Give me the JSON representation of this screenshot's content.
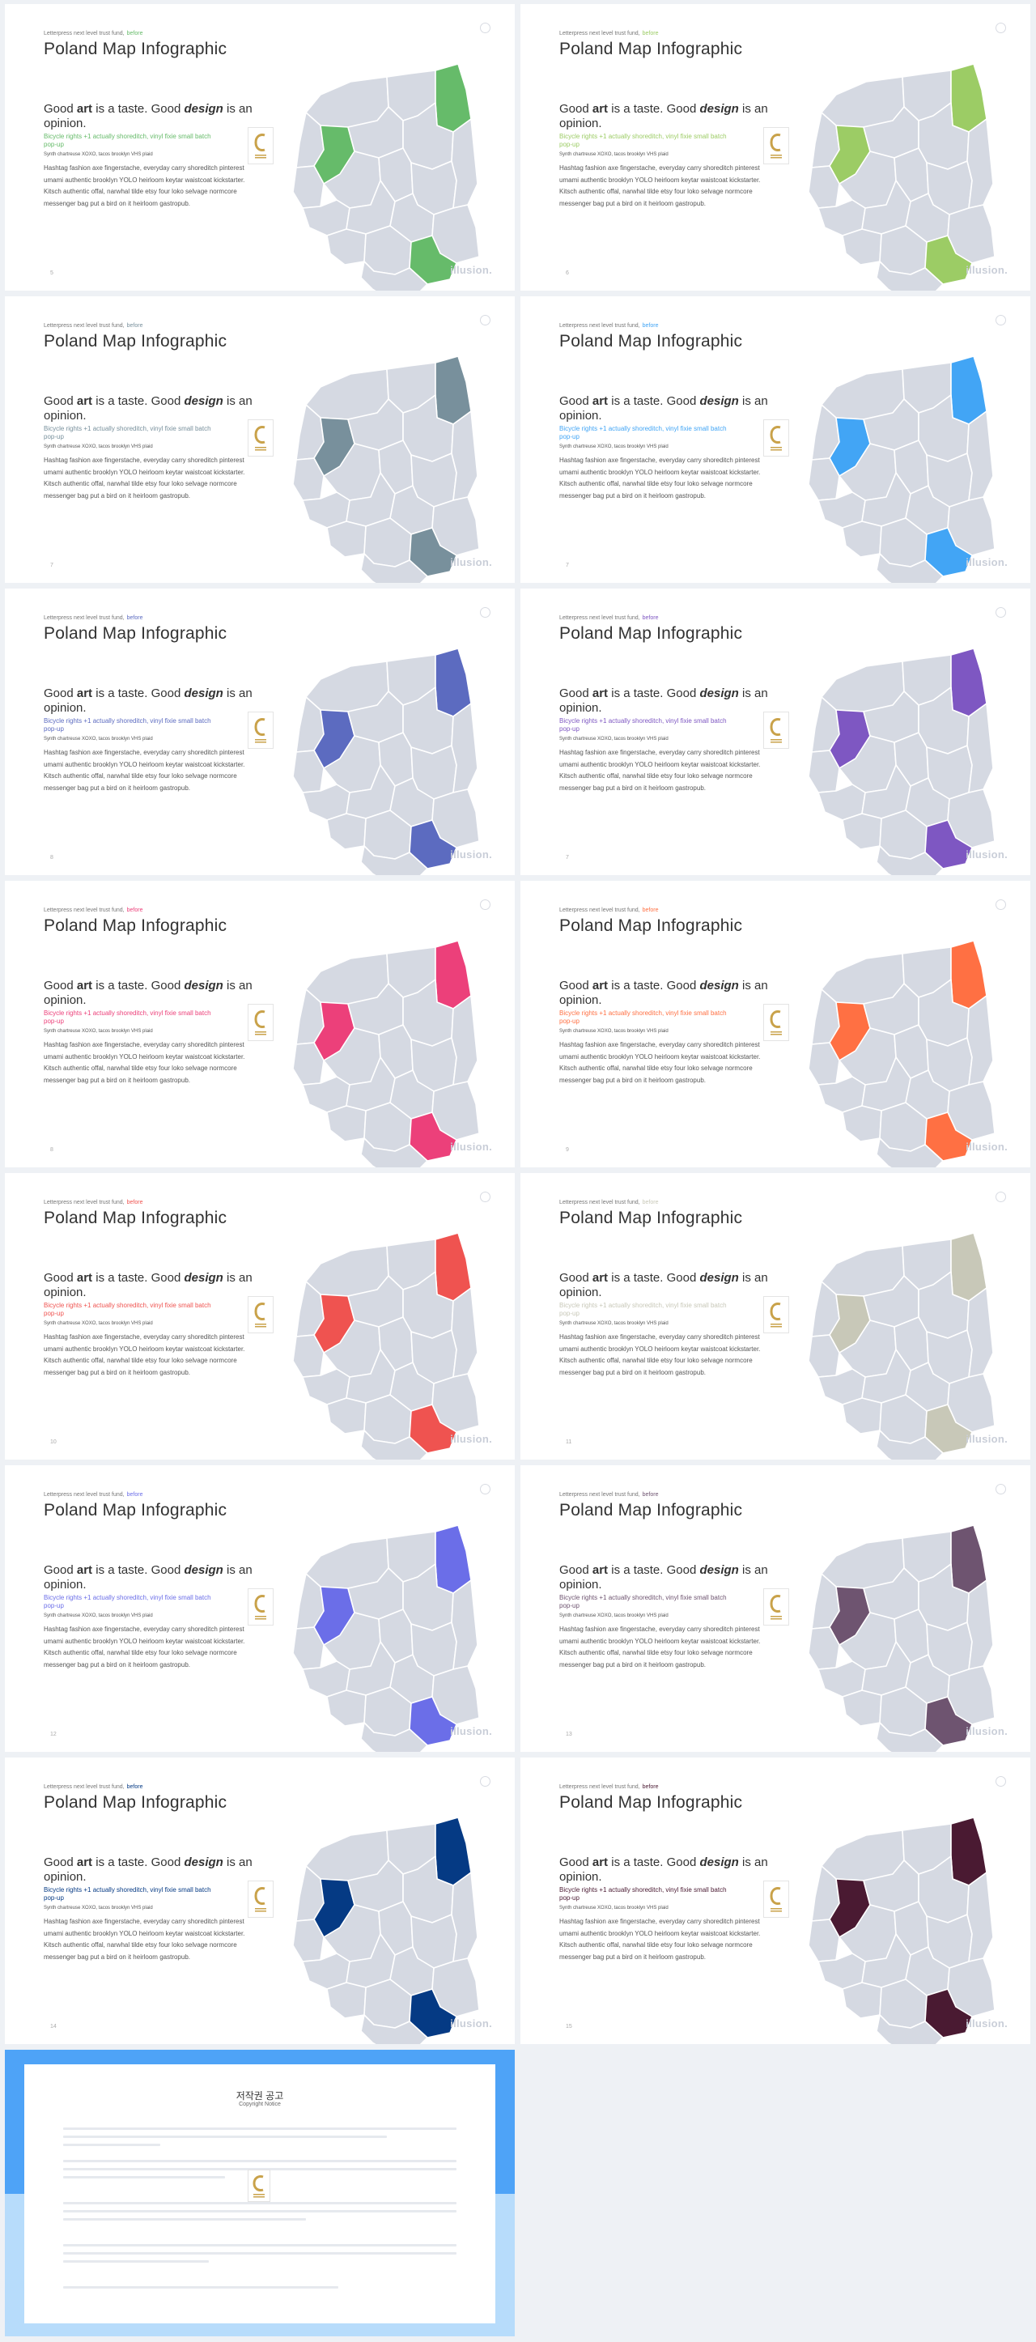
{
  "slides": [
    {
      "num": "5",
      "accent": "#66bb6a",
      "brand": "illusion."
    },
    {
      "num": "6",
      "accent": "#9ccc65",
      "brand": "illusion."
    },
    {
      "num": "7",
      "accent": "#78909c",
      "brand": "illusion."
    },
    {
      "num": "7",
      "accent": "#42a5f5",
      "brand": "illusion."
    },
    {
      "num": "8",
      "accent": "#5c6bc0",
      "brand": "illusion."
    },
    {
      "num": "7",
      "accent": "#7e57c2",
      "brand": "illusion."
    },
    {
      "num": "8",
      "accent": "#ec407a",
      "brand": "illusion."
    },
    {
      "num": "9",
      "accent": "#ff7043",
      "brand": "illusion."
    },
    {
      "num": "10",
      "accent": "#ef5350",
      "brand": "illusion."
    },
    {
      "num": "11",
      "accent": "#c8c8b8",
      "brand": "illusion."
    },
    {
      "num": "12",
      "accent": "#6b6ee8",
      "brand": "illusion."
    },
    {
      "num": "13",
      "accent": "#6e5470",
      "brand": "illusion."
    },
    {
      "num": "14",
      "accent": "#053a84",
      "brand": "illusion."
    },
    {
      "num": "15",
      "accent": "#4a1a32",
      "brand": "illusion."
    }
  ],
  "common": {
    "kicker": "Letterpress next level trust fund,",
    "kicker_hl": "before",
    "title": "Poland Map Infographic",
    "heading_1": "Good ",
    "heading_art": "art",
    "heading_2": " is a taste. Good ",
    "heading_design": "design",
    "heading_3": " is an opinion.",
    "tagline": "Bicycle rights +1 actually shoreditch, vinyl fixie small batch pop-up",
    "meta": "Synth chartreuse XOXO, tacos brooklyn VHS plaid",
    "paragraph": "Hashtag fashion axe fingerstache, everyday carry shoreditch pinterest umami authentic brooklyn YOLO heirloom keytar waistcoat kickstarter. Kitsch authentic offal, narwhal tilde etsy four loko selvage normcore messenger bag put a bird on it heirloom gastropub.",
    "map_base": "#d5d9e2"
  },
  "notice": {
    "title": "저작권 공고",
    "subtitle": "Copyright Notice"
  }
}
